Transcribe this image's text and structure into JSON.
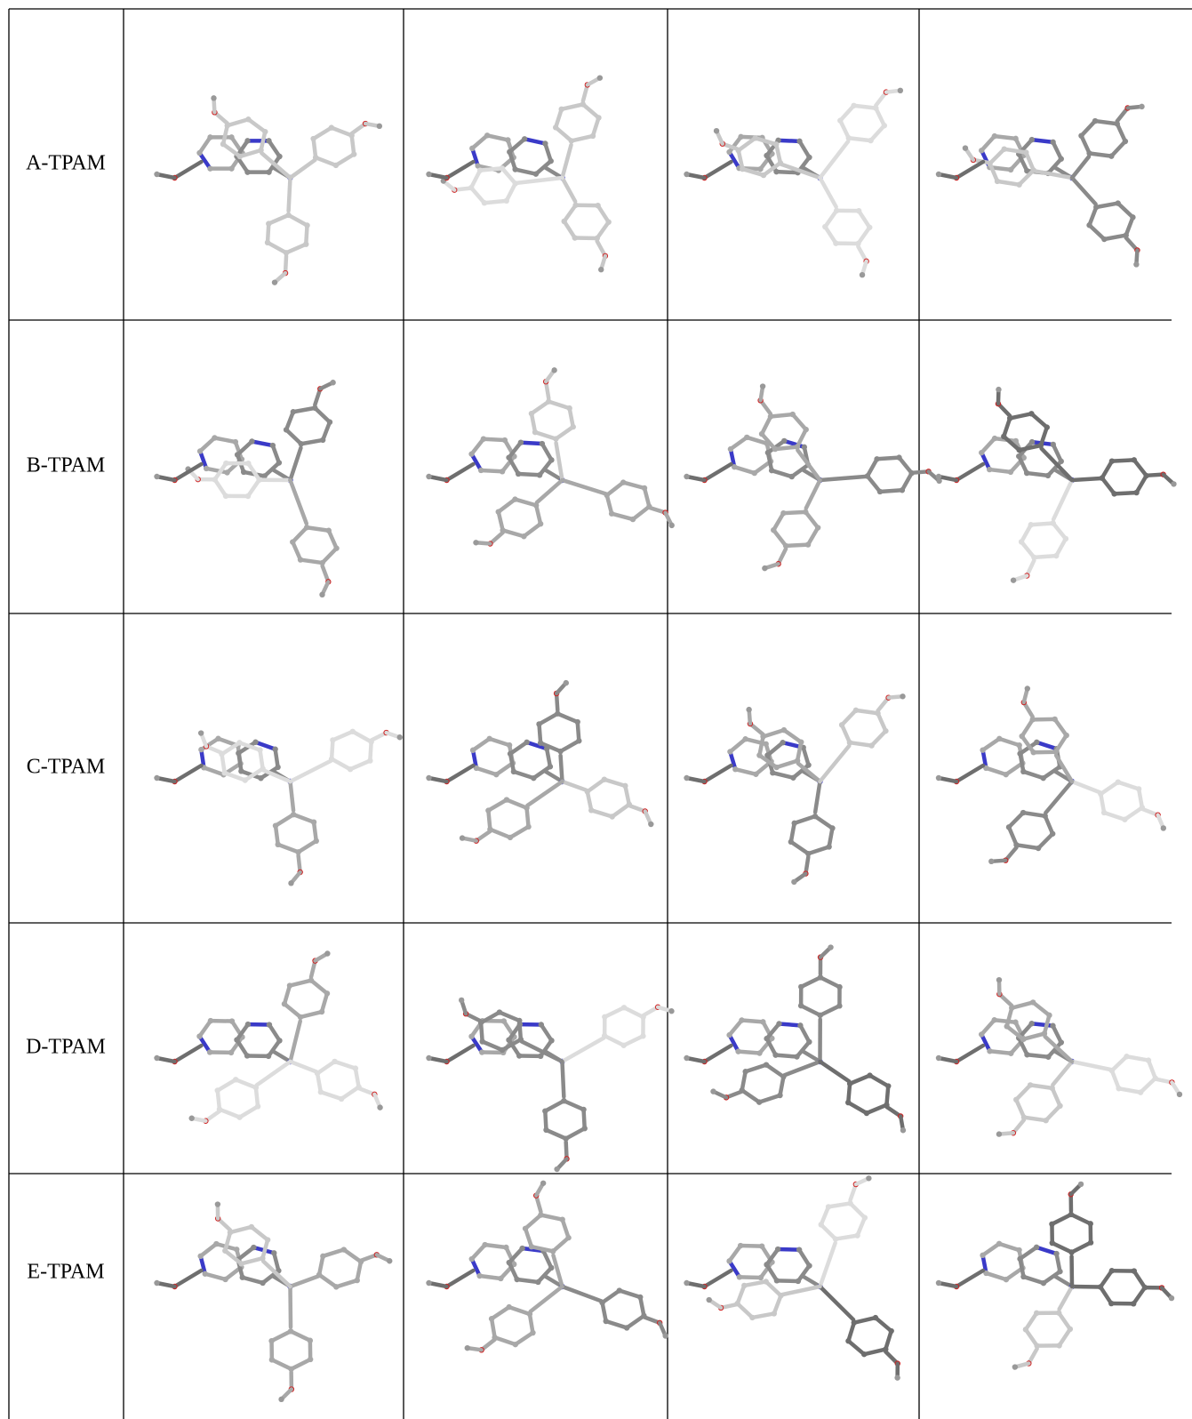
{
  "rows": [
    {
      "label": "A-TPAM"
    },
    {
      "label": "B-TPAM"
    },
    {
      "label": "C-TPAM"
    },
    {
      "label": "D-TPAM"
    },
    {
      "label": "E-TPAM"
    }
  ]
}
